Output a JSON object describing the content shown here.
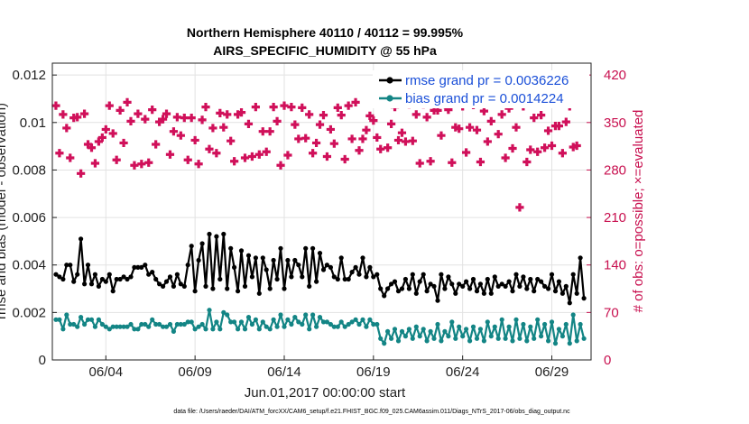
{
  "chart_data": {
    "type": "line",
    "title": "Northern Hemisphere 40110 / 40112 = 99.995%",
    "subtitle": "AIRS_SPECIFIC_HUMIDITY @ 55 hPa",
    "xlabel": "Jun.01,2017 00:00:00 start",
    "ylabel": "rmse and bias (model - observation)",
    "ylabel_right": "# of obs: o=possible; ×=evaluated",
    "x_tick_labels": [
      "06/04",
      "06/09",
      "06/14",
      "06/19",
      "06/24",
      "06/29"
    ],
    "x_tick_days": [
      4,
      9,
      14,
      19,
      24,
      29
    ],
    "xlim": [
      1.0,
      31.2
    ],
    "y_tick_labels": [
      "0",
      "0.002",
      "0.004",
      "0.006",
      "0.008",
      "0.01",
      "0.012"
    ],
    "ylim": [
      0,
      0.0125
    ],
    "y_right_tick_labels": [
      "0",
      "70",
      "140",
      "210",
      "280",
      "350",
      "420"
    ],
    "ylim_right": [
      0,
      437.5
    ],
    "footnote": "data file: /Users/raeder/DAI/ATM_forcXX/CAM6_setup/f.e21.FHIST_BGC.f09_025.CAM6assim.011/Diags_NTrS_2017-06/obs_diag_output.nc",
    "series": [
      {
        "name": "rmse",
        "legend": "rmse grand pr = 0.0036226",
        "color": "#000000",
        "values": [
          0.0036,
          0.0035,
          0.0034,
          0.004,
          0.004,
          0.0033,
          0.0036,
          0.0051,
          0.0032,
          0.004,
          0.0032,
          0.0036,
          0.0031,
          0.0034,
          0.0033,
          0.0036,
          0.0029,
          0.0034,
          0.0034,
          0.0035,
          0.0034,
          0.0035,
          0.0039,
          0.0039,
          0.0039,
          0.004,
          0.0036,
          0.0037,
          0.0034,
          0.0032,
          0.0031,
          0.0033,
          0.0035,
          0.0031,
          0.0036,
          0.0032,
          0.0031,
          0.004,
          0.0048,
          0.0029,
          0.0042,
          0.0049,
          0.0031,
          0.0053,
          0.003,
          0.0052,
          0.0034,
          0.0053,
          0.003,
          0.0047,
          0.0039,
          0.0029,
          0.0046,
          0.0031,
          0.0044,
          0.0035,
          0.0043,
          0.0028,
          0.0043,
          0.0038,
          0.003,
          0.0042,
          0.0034,
          0.0047,
          0.003,
          0.0042,
          0.0035,
          0.0042,
          0.004,
          0.0035,
          0.0047,
          0.0031,
          0.0047,
          0.0033,
          0.0045,
          0.0038,
          0.004,
          0.0039,
          0.0035,
          0.0034,
          0.0043,
          0.0034,
          0.0034,
          0.0037,
          0.0039,
          0.0036,
          0.0043,
          0.0035,
          0.0039,
          0.0035,
          0.0036,
          0.003,
          0.0027,
          0.003,
          0.0032,
          0.0033,
          0.0029,
          0.003,
          0.0034,
          0.003,
          0.0036,
          0.0028,
          0.0033,
          0.0036,
          0.0029,
          0.0032,
          0.0031,
          0.0025,
          0.0036,
          0.003,
          0.0035,
          0.0032,
          0.0028,
          0.0032,
          0.0031,
          0.0033,
          0.003,
          0.0034,
          0.0029,
          0.0032,
          0.0028,
          0.0034,
          0.0028,
          0.0035,
          0.0031,
          0.0032,
          0.0031,
          0.0033,
          0.0029,
          0.0036,
          0.0031,
          0.0035,
          0.003,
          0.0034,
          0.0029,
          0.0034,
          0.0033,
          0.0031,
          0.003,
          0.0036,
          0.0029,
          0.0033,
          0.0028,
          0.0031,
          0.0024,
          0.0036,
          0.0028,
          0.0043,
          0.0026
        ]
      },
      {
        "name": "bias",
        "legend": "bias grand pr = 0.0014224",
        "color": "#138585",
        "values": [
          0.0017,
          0.0017,
          0.0013,
          0.0019,
          0.0015,
          0.0015,
          0.0014,
          0.0018,
          0.0015,
          0.0017,
          0.0017,
          0.0014,
          0.0017,
          0.0015,
          0.0014,
          0.0013,
          0.0014,
          0.0014,
          0.0014,
          0.0014,
          0.0014,
          0.0015,
          0.0013,
          0.0013,
          0.0015,
          0.0015,
          0.0014,
          0.0017,
          0.0015,
          0.0015,
          0.0014,
          0.0014,
          0.0015,
          0.0012,
          0.0015,
          0.0015,
          0.0015,
          0.0016,
          0.0016,
          0.0013,
          0.0014,
          0.0015,
          0.0013,
          0.0021,
          0.0013,
          0.0016,
          0.0013,
          0.002,
          0.0019,
          0.0016,
          0.0016,
          0.0013,
          0.0016,
          0.0013,
          0.0018,
          0.0015,
          0.0017,
          0.0013,
          0.0016,
          0.0014,
          0.0013,
          0.0017,
          0.0014,
          0.0019,
          0.0014,
          0.0017,
          0.0015,
          0.0018,
          0.0016,
          0.0015,
          0.0019,
          0.0013,
          0.0019,
          0.0014,
          0.0018,
          0.0016,
          0.0016,
          0.0015,
          0.0014,
          0.0014,
          0.0016,
          0.0014,
          0.0015,
          0.0016,
          0.0017,
          0.0015,
          0.0017,
          0.0014,
          0.0017,
          0.0015,
          0.0015,
          0.0009,
          0.0007,
          0.0012,
          0.0009,
          0.0013,
          0.0008,
          0.0012,
          0.001,
          0.0013,
          0.0009,
          0.0014,
          0.001,
          0.0013,
          0.0008,
          0.0012,
          0.0009,
          0.0015,
          0.0008,
          0.0012,
          0.001,
          0.0016,
          0.0009,
          0.0014,
          0.001,
          0.0013,
          0.0008,
          0.0014,
          0.0009,
          0.0013,
          0.0008,
          0.0016,
          0.001,
          0.0014,
          0.0009,
          0.0017,
          0.0009,
          0.0014,
          0.0008,
          0.0017,
          0.0009,
          0.0015,
          0.0008,
          0.0014,
          0.0009,
          0.0017,
          0.001,
          0.0015,
          0.0008,
          0.0016,
          0.0007,
          0.0013,
          0.001,
          0.0015,
          0.0007,
          0.0019,
          0.0008,
          0.0015,
          0.0009
        ]
      }
    ],
    "obs_counts": {
      "name": "# of obs",
      "color": "#d0105a",
      "values": [
        375,
        305,
        362,
        342,
        298,
        357,
        358,
        275,
        363,
        318,
        313,
        290,
        322,
        328,
        340,
        375,
        334,
        295,
        368,
        320,
        380,
        352,
        287,
        363,
        289,
        355,
        291,
        369,
        318,
        351,
        355,
        363,
        303,
        337,
        358,
        331,
        357,
        295,
        357,
        324,
        289,
        354,
        373,
        311,
        342,
        305,
        364,
        343,
        362,
        323,
        293,
        362,
        365,
        298,
        348,
        300,
        373,
        303,
        337,
        307,
        337,
        373,
        352,
        287,
        375,
        302,
        373,
        347,
        326,
        372,
        327,
        362,
        305,
        320,
        347,
        361,
        300,
        340,
        319,
        372,
        361,
        296,
        375,
        326,
        380,
        309,
        326,
        339,
        360,
        353,
        328,
        311,
        378,
        313,
        348,
        373,
        324,
        335,
        322,
        377,
        323,
        362,
        290,
        377,
        358,
        293,
        368,
        368,
        331,
        377,
        369,
        291,
        343,
        341,
        374,
        306,
        343,
        376,
        339,
        292,
        367,
        322,
        352,
        378,
        333,
        362,
        298,
        371,
        312,
        343,
        225,
        374,
        292,
        310,
        357,
        307,
        361,
        313,
        338,
        316,
        345,
        345,
        305,
        351,
        374,
        314,
        316
      ]
    },
    "legend_position": "top-right"
  }
}
